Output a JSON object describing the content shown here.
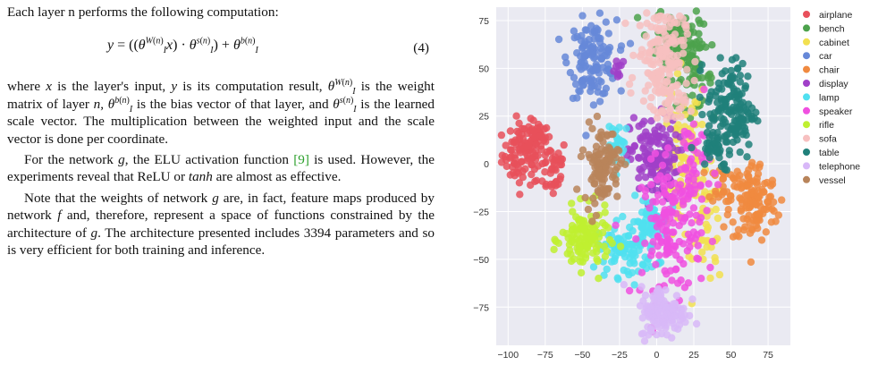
{
  "text": {
    "intro": "Each layer n performs the following computation:",
    "eq_number": "(4)",
    "p_where": "where x is the layer's input, y is its computation result, θ_I^{W(n)} is the weight matrix of layer n, θ_I^{b(n)} is the bias vector of that layer, and θ_I^{s(n)} is the learned scale vector. The multiplication between the weighted input and the scale vector is done per coordinate.",
    "p_network": "For the network g, the ELU activation function [9] is used. However, the experiments reveal that ReLU or tanh are almost as effective.",
    "p_note": "Note that the weights of network g are, in fact, feature maps produced by network f and, therefore, represent a space of functions constrained by the architecture of g. The architecture presented includes 3394 parameters and so is very efficient for both training and inference."
  },
  "chart_data": {
    "type": "scatter",
    "title": "",
    "xlabel": "",
    "ylabel": "",
    "xlim": [
      -108,
      90
    ],
    "ylim": [
      -95,
      82
    ],
    "xticks": [
      -100,
      -75,
      -50,
      -25,
      0,
      25,
      50,
      75
    ],
    "yticks": [
      75,
      50,
      25,
      0,
      -25,
      -50,
      -75
    ],
    "grid": true,
    "background": "#eaeaf2",
    "legend_position": "right",
    "series": [
      {
        "name": "airplane",
        "color": "#e8505b"
      },
      {
        "name": "bench",
        "color": "#4ca24c"
      },
      {
        "name": "cabinet",
        "color": "#f2e050"
      },
      {
        "name": "car",
        "color": "#6688d8"
      },
      {
        "name": "chair",
        "color": "#f08a40"
      },
      {
        "name": "display",
        "color": "#a040c8"
      },
      {
        "name": "lamp",
        "color": "#50e0f0"
      },
      {
        "name": "speaker",
        "color": "#f050e0"
      },
      {
        "name": "rifle",
        "color": "#bff030"
      },
      {
        "name": "sofa",
        "color": "#f7c0c0"
      },
      {
        "name": "table",
        "color": "#20807a"
      },
      {
        "name": "telephone",
        "color": "#d8b8f8"
      },
      {
        "name": "vessel",
        "color": "#b8845a"
      }
    ],
    "clusters": [
      {
        "series": 0,
        "cx": -90,
        "cy": 5,
        "sx": 7,
        "sy": 8,
        "n": 90
      },
      {
        "series": 0,
        "cx": -80,
        "cy": 15,
        "sx": 4,
        "sy": 4,
        "n": 30
      },
      {
        "series": 0,
        "cx": -70,
        "cy": -2,
        "sx": 5,
        "sy": 8,
        "n": 40
      },
      {
        "series": 1,
        "cx": 15,
        "cy": 65,
        "sx": 8,
        "sy": 10,
        "n": 120
      },
      {
        "series": 1,
        "cx": 25,
        "cy": 45,
        "sx": 6,
        "sy": 8,
        "n": 50
      },
      {
        "series": 2,
        "cx": 18,
        "cy": 0,
        "sx": 8,
        "sy": 25,
        "n": 80
      },
      {
        "series": 2,
        "cx": 35,
        "cy": -35,
        "sx": 5,
        "sy": 15,
        "n": 40
      },
      {
        "series": 3,
        "cx": -43,
        "cy": 55,
        "sx": 8,
        "sy": 10,
        "n": 130
      },
      {
        "series": 4,
        "cx": 65,
        "cy": -20,
        "sx": 8,
        "sy": 11,
        "n": 130
      },
      {
        "series": 4,
        "cx": 45,
        "cy": -10,
        "sx": 5,
        "sy": 5,
        "n": 25
      },
      {
        "series": 5,
        "cx": -2,
        "cy": 3,
        "sx": 8,
        "sy": 11,
        "n": 140
      },
      {
        "series": 5,
        "cx": -25,
        "cy": 48,
        "sx": 3,
        "sy": 3,
        "n": 10
      },
      {
        "series": 6,
        "cx": -20,
        "cy": -45,
        "sx": 10,
        "sy": 7,
        "n": 90
      },
      {
        "series": 6,
        "cx": -5,
        "cy": -30,
        "sx": 6,
        "sy": 6,
        "n": 50
      },
      {
        "series": 6,
        "cx": -25,
        "cy": 10,
        "sx": 4,
        "sy": 6,
        "n": 25
      },
      {
        "series": 7,
        "cx": 10,
        "cy": -35,
        "sx": 10,
        "sy": 18,
        "n": 150
      },
      {
        "series": 7,
        "cx": 25,
        "cy": 0,
        "sx": 6,
        "sy": 15,
        "n": 50
      },
      {
        "series": 8,
        "cx": -48,
        "cy": -40,
        "sx": 8,
        "sy": 8,
        "n": 120
      },
      {
        "series": 9,
        "cx": 3,
        "cy": 57,
        "sx": 8,
        "sy": 13,
        "n": 160
      },
      {
        "series": 9,
        "cx": 10,
        "cy": 30,
        "sx": 5,
        "sy": 6,
        "n": 30
      },
      {
        "series": 10,
        "cx": 50,
        "cy": 28,
        "sx": 8,
        "sy": 13,
        "n": 150
      },
      {
        "series": 10,
        "cx": 38,
        "cy": 10,
        "sx": 5,
        "sy": 6,
        "n": 30
      },
      {
        "series": 11,
        "cx": 5,
        "cy": -78,
        "sx": 8,
        "sy": 7,
        "n": 130
      },
      {
        "series": 12,
        "cx": -37,
        "cy": 0,
        "sx": 6,
        "sy": 10,
        "n": 110
      }
    ]
  }
}
